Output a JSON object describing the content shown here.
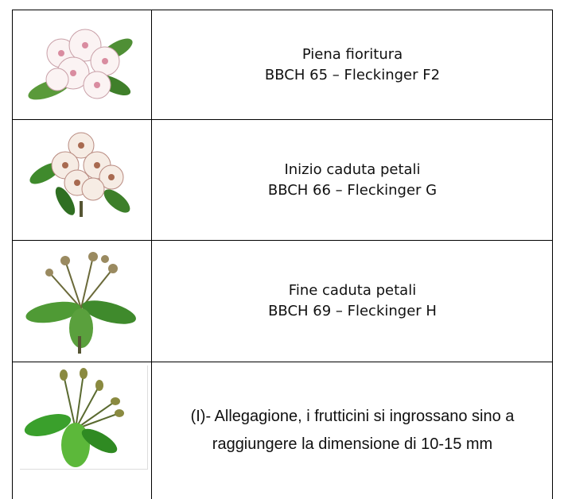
{
  "table": {
    "rows": [
      {
        "lines": [
          "Piena fioritura",
          "BBCH 65 – Fleckinger F2"
        ]
      },
      {
        "lines": [
          "Inizio caduta petali",
          "BBCH 66 – Fleckinger G"
        ]
      },
      {
        "lines": [
          "Fine caduta petali",
          "BBCH 69 – Fleckinger H"
        ]
      },
      {
        "lines": [
          "(I)- Allegagione, i frutticini si ingrossano sino a raggiungere la dimensione di 10-15 mm"
        ]
      }
    ]
  }
}
